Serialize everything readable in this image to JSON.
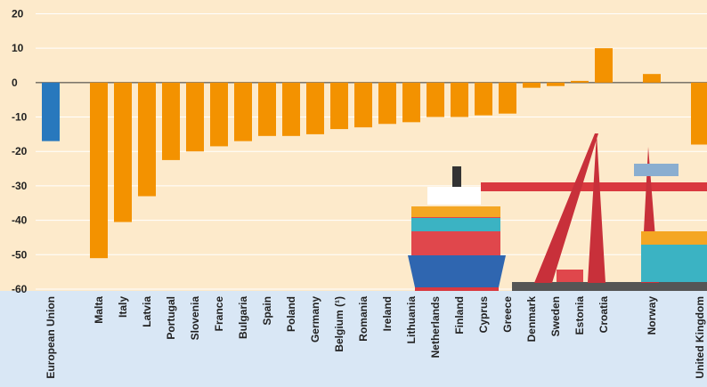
{
  "chart_data": {
    "type": "bar",
    "categories": [
      "European Union",
      null,
      "Malta",
      "Italy",
      "Latvia",
      "Portugal",
      "Slovenia",
      "France",
      "Bulgaria",
      "Spain",
      "Poland",
      "Germany",
      "Belgium (¹)",
      "Romania",
      "Ireland",
      "Lithuania",
      "Netherlands",
      "Finland",
      "Cyprus",
      "Greece",
      "Denmark",
      "Sweden",
      "Estonia",
      "Croatia",
      null,
      "Norway",
      null,
      "United Kingdom"
    ],
    "values": [
      -17,
      null,
      -51,
      -40.5,
      -33,
      -22.5,
      -20,
      -18.5,
      -17,
      -15.5,
      -15.5,
      -15,
      -13.5,
      -13,
      -12,
      -11.5,
      -10,
      -10,
      -9.5,
      -9,
      -1.5,
      -1,
      0.5,
      10,
      null,
      2.5,
      null,
      -18
    ],
    "colors": [
      "#2878bd",
      null,
      "#f39200",
      "#f39200",
      "#f39200",
      "#f39200",
      "#f39200",
      "#f39200",
      "#f39200",
      "#f39200",
      "#f39200",
      "#f39200",
      "#f39200",
      "#f39200",
      "#f39200",
      "#f39200",
      "#f39200",
      "#f39200",
      "#f39200",
      "#f39200",
      "#f39200",
      "#f39200",
      "#f39200",
      "#f39200",
      null,
      "#f39200",
      null,
      "#f39200"
    ],
    "ylim": [
      -60,
      24
    ],
    "yticks": [
      20,
      10,
      0,
      -10,
      -20,
      -30,
      -40,
      -50,
      -60
    ],
    "grid": true
  }
}
